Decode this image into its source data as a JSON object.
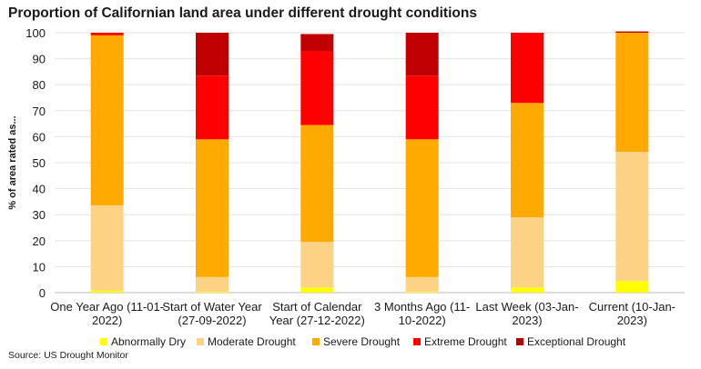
{
  "chart_data": {
    "type": "bar",
    "stacked": true,
    "title": "Proportion of Californian land area under different drought conditions",
    "ylabel": "% of area rated as...",
    "xlabel": "",
    "ylim": [
      0,
      100
    ],
    "yticks": [
      0,
      10,
      20,
      30,
      40,
      50,
      60,
      70,
      80,
      90,
      100
    ],
    "grid": true,
    "legend_position": "bottom",
    "categories": [
      [
        "One Year Ago (11-01-",
        "2022)"
      ],
      [
        "Start of Water Year",
        "(27-09-2022)"
      ],
      [
        "Start of Calendar",
        "Year (27-12-2022)"
      ],
      [
        "3 Months Ago (11-",
        "10-2022)"
      ],
      [
        "Last Week (03-Jan-",
        "2023)"
      ],
      [
        "Current (10-Jan-",
        "2023)"
      ]
    ],
    "series": [
      {
        "name": "Abnormally Dry",
        "color": "#ffff00",
        "values": [
          0.8,
          0.3,
          2.0,
          0.3,
          2.0,
          4.5
        ]
      },
      {
        "name": "Moderate Drought",
        "color": "#fcd385",
        "values": [
          32.8,
          5.7,
          17.5,
          5.7,
          27.0,
          49.7
        ]
      },
      {
        "name": "Severe Drought",
        "color": "#ffaa00",
        "values": [
          65.4,
          53.0,
          45.0,
          53.0,
          44.0,
          45.8
        ]
      },
      {
        "name": "Extreme Drought",
        "color": "#ff0000",
        "values": [
          1.0,
          24.5,
          28.5,
          24.5,
          27.0,
          0.0
        ]
      },
      {
        "name": "Exceptional Drought",
        "color": "#c00000",
        "values": [
          0.0,
          16.5,
          6.5,
          16.5,
          0.0,
          0.5
        ]
      }
    ]
  },
  "footer": {
    "source": "Source: US Drought Monitor"
  }
}
